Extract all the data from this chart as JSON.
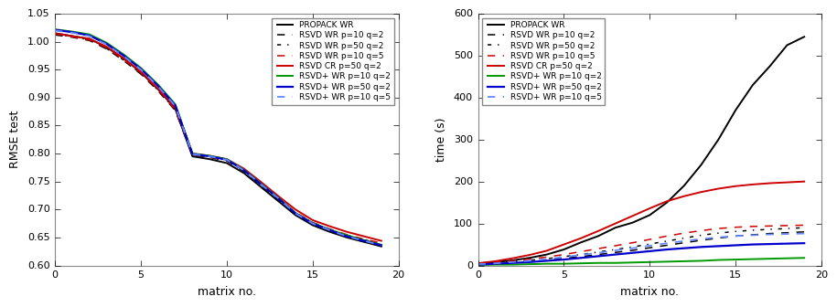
{
  "x": [
    0,
    1,
    2,
    3,
    4,
    5,
    6,
    7,
    8,
    9,
    10,
    11,
    12,
    13,
    14,
    15,
    16,
    17,
    18,
    19
  ],
  "rmse": {
    "propack_wr": [
      1.015,
      1.01,
      1.005,
      0.99,
      0.97,
      0.945,
      0.915,
      0.88,
      0.795,
      0.79,
      0.783,
      0.765,
      0.74,
      0.715,
      0.69,
      0.672,
      0.66,
      0.65,
      0.642,
      0.634
    ],
    "rsvd_wr_p10_q2": [
      1.012,
      1.008,
      1.002,
      0.987,
      0.966,
      0.942,
      0.912,
      0.877,
      0.797,
      0.793,
      0.787,
      0.768,
      0.743,
      0.718,
      0.693,
      0.675,
      0.663,
      0.653,
      0.645,
      0.637
    ],
    "rsvd_wr_p50_q2": [
      1.013,
      1.009,
      1.003,
      0.988,
      0.967,
      0.943,
      0.913,
      0.878,
      0.798,
      0.794,
      0.788,
      0.769,
      0.744,
      0.719,
      0.694,
      0.676,
      0.664,
      0.654,
      0.646,
      0.638
    ],
    "rsvd_wr_p10_q5": [
      1.014,
      1.009,
      1.003,
      0.989,
      0.968,
      0.944,
      0.914,
      0.879,
      0.798,
      0.794,
      0.788,
      0.77,
      0.745,
      0.72,
      0.695,
      0.677,
      0.665,
      0.655,
      0.647,
      0.64
    ],
    "rsvd_cr_p50_q2": [
      1.015,
      1.01,
      1.005,
      0.991,
      0.97,
      0.946,
      0.916,
      0.882,
      0.8,
      0.796,
      0.79,
      0.773,
      0.749,
      0.724,
      0.7,
      0.681,
      0.67,
      0.66,
      0.652,
      0.644
    ],
    "rsvdp_wr_p10_q2": [
      1.022,
      1.018,
      1.013,
      0.998,
      0.977,
      0.953,
      0.923,
      0.888,
      0.8,
      0.796,
      0.79,
      0.771,
      0.746,
      0.721,
      0.694,
      0.676,
      0.664,
      0.654,
      0.645,
      0.637
    ],
    "rsvdp_wr_p50_q2": [
      1.021,
      1.017,
      1.011,
      0.996,
      0.975,
      0.951,
      0.921,
      0.886,
      0.799,
      0.795,
      0.789,
      0.77,
      0.745,
      0.72,
      0.693,
      0.675,
      0.663,
      0.652,
      0.644,
      0.636
    ],
    "rsvdp_wr_p10_q5": [
      1.02,
      1.016,
      1.01,
      0.995,
      0.974,
      0.95,
      0.92,
      0.885,
      0.799,
      0.795,
      0.789,
      0.77,
      0.745,
      0.72,
      0.693,
      0.675,
      0.663,
      0.652,
      0.644,
      0.636
    ]
  },
  "time": {
    "propack_wr": [
      5,
      8,
      12,
      18,
      26,
      38,
      55,
      70,
      90,
      102,
      120,
      150,
      190,
      240,
      300,
      370,
      430,
      475,
      525,
      545
    ],
    "rsvd_wr_p10_q2": [
      3,
      5,
      7,
      10,
      13,
      17,
      21,
      26,
      31,
      36,
      42,
      48,
      54,
      60,
      65,
      70,
      73,
      76,
      78,
      80
    ],
    "rsvd_wr_p50_q2": [
      4,
      6,
      9,
      12,
      16,
      21,
      26,
      32,
      38,
      44,
      51,
      58,
      65,
      72,
      77,
      81,
      84,
      86,
      88,
      90
    ],
    "rsvd_wr_p10_q5": [
      5,
      8,
      11,
      15,
      20,
      26,
      33,
      40,
      47,
      54,
      62,
      70,
      77,
      83,
      88,
      91,
      93,
      94,
      95,
      96
    ],
    "rsvd_cr_p50_q2": [
      5,
      10,
      17,
      25,
      35,
      50,
      65,
      82,
      100,
      118,
      136,
      153,
      165,
      175,
      183,
      189,
      193,
      196,
      198,
      200
    ],
    "rsvdp_wr_p10_q2": [
      1,
      2,
      2,
      3,
      4,
      4,
      5,
      6,
      6,
      7,
      8,
      9,
      10,
      11,
      13,
      14,
      15,
      16,
      17,
      18
    ],
    "rsvdp_wr_p50_q2": [
      2,
      4,
      6,
      8,
      11,
      14,
      18,
      22,
      26,
      30,
      34,
      38,
      41,
      44,
      46,
      48,
      50,
      51,
      52,
      53
    ],
    "rsvdp_wr_p10_q5": [
      3,
      5,
      8,
      11,
      15,
      20,
      25,
      30,
      36,
      41,
      47,
      53,
      58,
      63,
      67,
      70,
      72,
      74,
      75,
      76
    ]
  },
  "legend_labels": [
    "PROPACK WR",
    "RSVD WR p=10 q=2",
    "RSVD WR p=50 q=2",
    "RSVD WR p=10 q=5",
    "RSVD CR p=50 q=2",
    "RSVD+ WR p=10 q=2",
    "RSVD+ WR p=50 q=2",
    "RSVD+ WR p=10 q=5"
  ],
  "colors": [
    "#000000",
    "#000000",
    "#000000",
    "#cc0000",
    "#cc0000",
    "#009900",
    "#0000cc",
    "#6688ff"
  ],
  "linestyles": [
    "-",
    "--",
    "-.",
    "--",
    "-",
    "-",
    "-",
    "--"
  ],
  "linewidths": [
    1.4,
    1.1,
    1.1,
    1.1,
    1.4,
    1.4,
    1.6,
    1.3
  ],
  "xlabel": "matrix no.",
  "ylabel_left": "RMSE test",
  "ylabel_right": "time (s)",
  "xlim": [
    0,
    19
  ],
  "ylim_rmse": [
    0.6,
    1.05
  ],
  "ylim_time": [
    0,
    600
  ],
  "yticks_rmse": [
    0.6,
    0.65,
    0.7,
    0.75,
    0.8,
    0.85,
    0.9,
    0.95,
    1.0,
    1.05
  ],
  "yticks_time": [
    0,
    100,
    200,
    300,
    400,
    500,
    600
  ],
  "xticks": [
    0,
    5,
    10,
    15,
    20
  ]
}
